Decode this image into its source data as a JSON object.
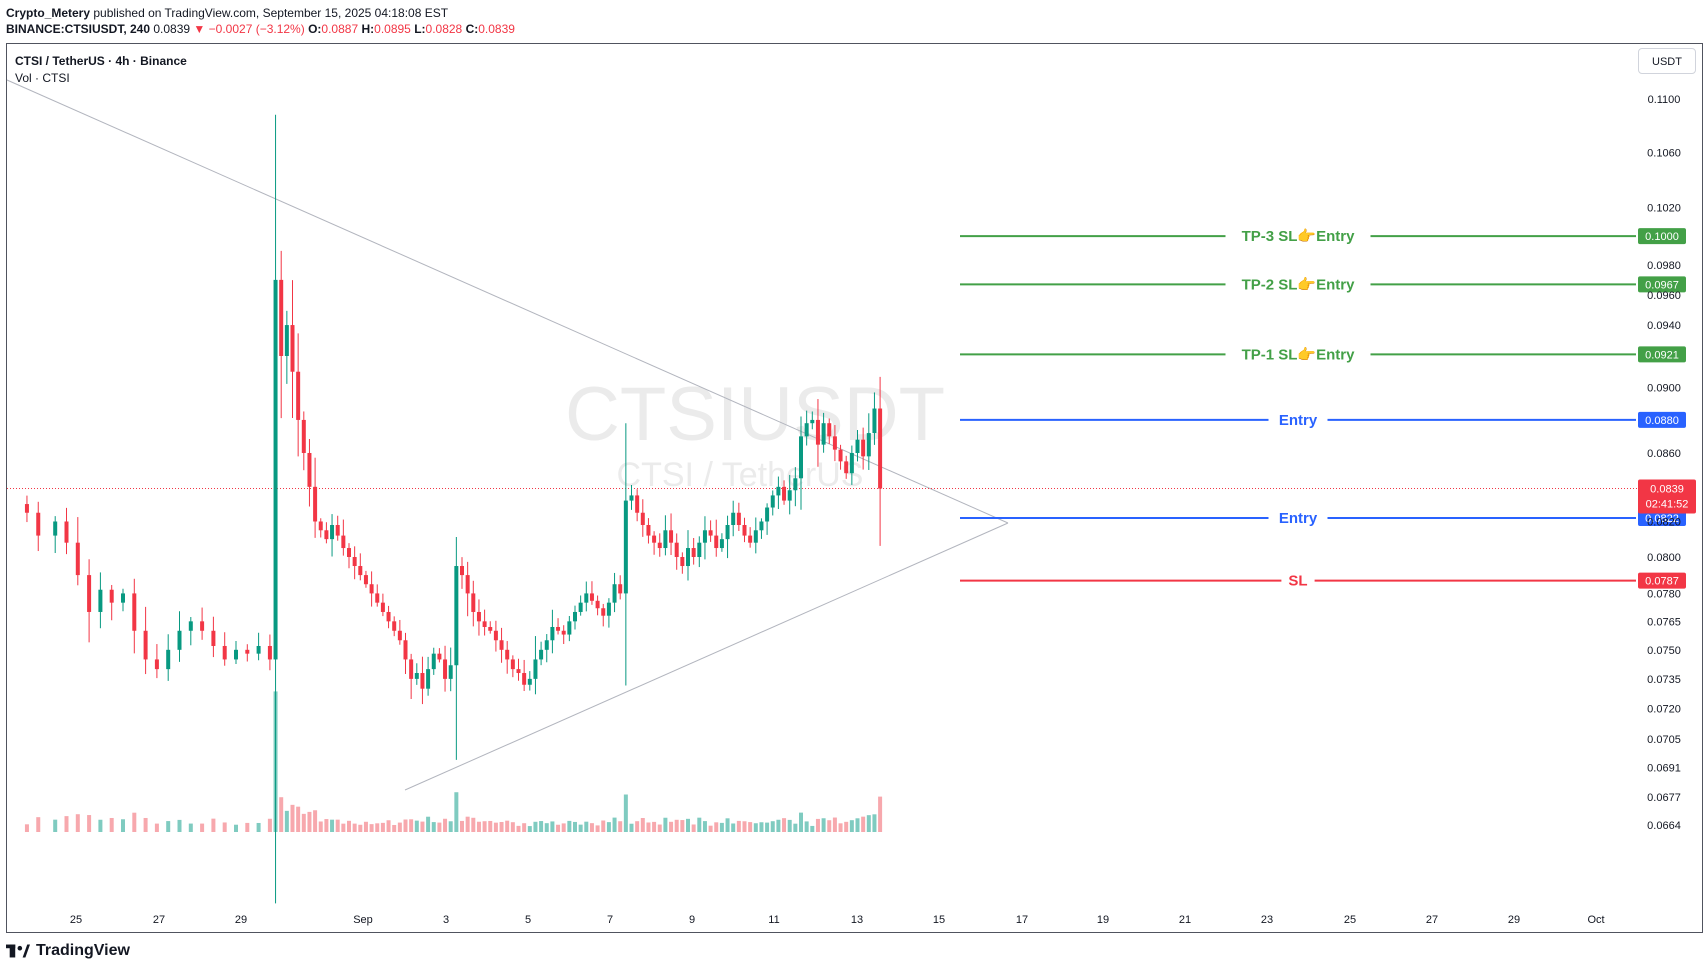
{
  "header": {
    "author": "Crypto_Metery",
    "published": "published on TradingView.com, September 15, 2025 04:18:08 EST",
    "symbol_line": "BINANCE:CTSIUSDT, 240",
    "last": "0.0839",
    "change": "−0.0027 (−3.12%)",
    "o_label": "O:",
    "o": "0.0887",
    "h_label": "H:",
    "h": "0.0895",
    "l_label": "L:",
    "l": "0.0828",
    "c_label": "C:",
    "c": "0.0839"
  },
  "pane": {
    "title": "CTSI / TetherUS · 4h · Binance",
    "volume_label": "Vol · CTSI",
    "currency": "USDT",
    "watermark_symbol": "CTSIUSDT",
    "watermark_name": "CTSI / TetherUS"
  },
  "footer": {
    "brand": "TradingView"
  },
  "chart_data": {
    "type": "candlestick",
    "title": "CTSI / TetherUS · 4h · Binance",
    "ylim": [
      0.0664,
      0.115
    ],
    "y_scale": "log",
    "y_ticks": [
      "0.1100",
      "0.1060",
      "0.1020",
      "0.0980",
      "0.0960",
      "0.0940",
      "0.0900",
      "0.0860",
      "0.0820",
      "0.0800",
      "0.0780",
      "0.0765",
      "0.0750",
      "0.0735",
      "0.0720",
      "0.0705",
      "0.0691",
      "0.0677",
      "0.0664"
    ],
    "x_ticks": [
      "25",
      "27",
      "29",
      "Sep",
      "3",
      "5",
      "7",
      "9",
      "11",
      "13",
      "15",
      "17",
      "19",
      "21",
      "23",
      "25",
      "27",
      "29",
      "Oct"
    ],
    "price_path": [
      [
        0,
        0.083
      ],
      [
        3,
        0.0825
      ],
      [
        5,
        0.0812
      ],
      [
        8,
        0.082
      ],
      [
        10,
        0.0808
      ],
      [
        12,
        0.079
      ],
      [
        14,
        0.077
      ],
      [
        16,
        0.0782
      ],
      [
        18,
        0.0775
      ],
      [
        20,
        0.078
      ],
      [
        22,
        0.076
      ],
      [
        24,
        0.0745
      ],
      [
        26,
        0.074
      ],
      [
        28,
        0.075
      ],
      [
        30,
        0.076
      ],
      [
        32,
        0.0765
      ],
      [
        34,
        0.076
      ],
      [
        36,
        0.0752
      ],
      [
        38,
        0.0745
      ],
      [
        40,
        0.075
      ],
      [
        42,
        0.0748
      ],
      [
        44,
        0.0752
      ],
      [
        46,
        0.0745
      ],
      [
        47,
        0.097
      ],
      [
        48,
        0.092
      ],
      [
        49,
        0.094
      ],
      [
        50,
        0.091
      ],
      [
        51,
        0.088
      ],
      [
        52,
        0.086
      ],
      [
        53,
        0.084
      ],
      [
        54,
        0.082
      ],
      [
        55,
        0.0815
      ],
      [
        56,
        0.081
      ],
      [
        57,
        0.0818
      ],
      [
        58,
        0.0812
      ],
      [
        59,
        0.0805
      ],
      [
        60,
        0.08
      ],
      [
        61,
        0.0795
      ],
      [
        62,
        0.079
      ],
      [
        63,
        0.0785
      ],
      [
        64,
        0.078
      ],
      [
        65,
        0.0775
      ],
      [
        66,
        0.077
      ],
      [
        67,
        0.0765
      ],
      [
        68,
        0.076
      ],
      [
        69,
        0.0755
      ],
      [
        70,
        0.0745
      ],
      [
        71,
        0.0735
      ],
      [
        72,
        0.0738
      ],
      [
        73,
        0.073
      ],
      [
        74,
        0.074
      ],
      [
        75,
        0.0748
      ],
      [
        76,
        0.0745
      ],
      [
        77,
        0.0735
      ],
      [
        78,
        0.0742
      ],
      [
        79,
        0.0795
      ],
      [
        80,
        0.079
      ],
      [
        81,
        0.078
      ],
      [
        82,
        0.077
      ],
      [
        83,
        0.0765
      ],
      [
        84,
        0.0762
      ],
      [
        85,
        0.076
      ],
      [
        86,
        0.0755
      ],
      [
        87,
        0.075
      ],
      [
        88,
        0.0745
      ],
      [
        89,
        0.074
      ],
      [
        90,
        0.0738
      ],
      [
        91,
        0.0732
      ],
      [
        92,
        0.0735
      ],
      [
        93,
        0.0745
      ],
      [
        94,
        0.075
      ],
      [
        95,
        0.0755
      ],
      [
        96,
        0.0762
      ],
      [
        97,
        0.076
      ],
      [
        98,
        0.0758
      ],
      [
        99,
        0.0765
      ],
      [
        100,
        0.077
      ],
      [
        101,
        0.0775
      ],
      [
        102,
        0.078
      ],
      [
        103,
        0.0776
      ],
      [
        104,
        0.0772
      ],
      [
        105,
        0.0768
      ],
      [
        106,
        0.0775
      ],
      [
        107,
        0.0785
      ],
      [
        108,
        0.078
      ],
      [
        109,
        0.0832
      ],
      [
        110,
        0.0835
      ],
      [
        111,
        0.0825
      ],
      [
        112,
        0.0818
      ],
      [
        113,
        0.0812
      ],
      [
        114,
        0.0808
      ],
      [
        115,
        0.0805
      ],
      [
        116,
        0.0815
      ],
      [
        117,
        0.0808
      ],
      [
        118,
        0.08
      ],
      [
        119,
        0.0795
      ],
      [
        120,
        0.0805
      ],
      [
        121,
        0.08
      ],
      [
        122,
        0.0808
      ],
      [
        123,
        0.0815
      ],
      [
        124,
        0.0812
      ],
      [
        125,
        0.0805
      ],
      [
        126,
        0.081
      ],
      [
        127,
        0.0818
      ],
      [
        128,
        0.0825
      ],
      [
        129,
        0.0818
      ],
      [
        130,
        0.0812
      ],
      [
        131,
        0.0808
      ],
      [
        132,
        0.0815
      ],
      [
        133,
        0.082
      ],
      [
        134,
        0.0828
      ],
      [
        135,
        0.0835
      ],
      [
        136,
        0.084
      ],
      [
        137,
        0.0832
      ],
      [
        138,
        0.0838
      ],
      [
        139,
        0.0845
      ],
      [
        140,
        0.087
      ],
      [
        141,
        0.0878
      ],
      [
        142,
        0.088
      ],
      [
        143,
        0.0865
      ],
      [
        144,
        0.0878
      ],
      [
        145,
        0.087
      ],
      [
        146,
        0.0862
      ],
      [
        147,
        0.0855
      ],
      [
        148,
        0.0848
      ],
      [
        149,
        0.086
      ],
      [
        150,
        0.0868
      ],
      [
        151,
        0.0858
      ],
      [
        152,
        0.0872
      ],
      [
        153,
        0.0887
      ],
      [
        154,
        0.0839
      ]
    ],
    "volume_bars_count": 155,
    "trendlines": [
      {
        "name": "descending resistance",
        "from": [
          0,
          0.112
        ],
        "to": [
          160,
          0.0839
        ]
      },
      {
        "name": "ascending support",
        "from": [
          66,
          0.071
        ],
        "to": [
          160,
          0.0839
        ]
      }
    ],
    "levels": [
      {
        "label": "TP-3  SL👉Entry",
        "value": 0.1,
        "tag": "0.1000",
        "color": "#43a047"
      },
      {
        "label": "TP-2  SL👉Entry",
        "value": 0.0967,
        "tag": "0.0967",
        "color": "#43a047"
      },
      {
        "label": "TP-1  SL👉Entry",
        "value": 0.0921,
        "tag": "0.0921",
        "color": "#43a047"
      },
      {
        "label": "Entry",
        "value": 0.088,
        "tag": "0.0880",
        "color": "#2962ff"
      },
      {
        "label": "Entry",
        "value": 0.0822,
        "tag": "0.0822",
        "color": "#2962ff"
      },
      {
        "label": "SL",
        "value": 0.0787,
        "tag": "0.0787",
        "color": "#f23645"
      }
    ],
    "last_price": {
      "value": 0.0839,
      "tag": "0.0839",
      "countdown": "02:41:52",
      "color": "#f23645"
    },
    "colors": {
      "up": "#089981",
      "down": "#f23645",
      "up_vol": "#7fcbc0",
      "down_vol": "#f7a8ad"
    }
  }
}
